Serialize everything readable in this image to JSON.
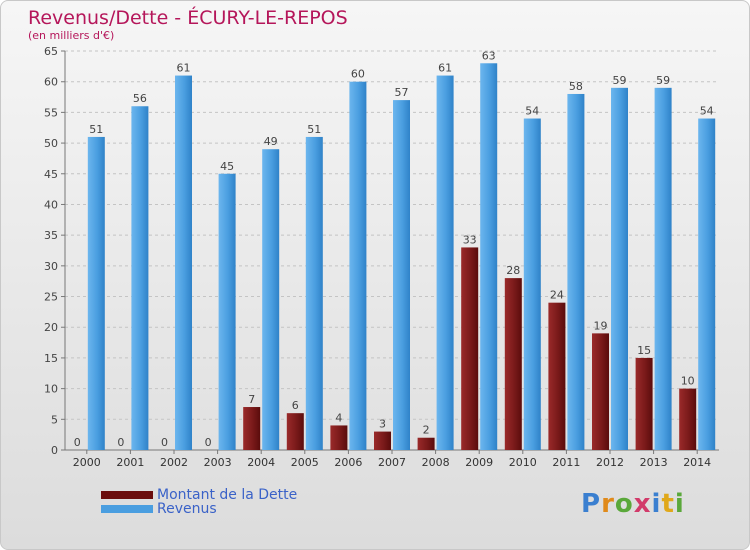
{
  "header": {
    "title": "Revenus/Dette - ÉCURY-LE-REPOS",
    "subtitle": "(en milliers d'€)"
  },
  "legend": {
    "items": [
      {
        "label": "Montant de la Dette",
        "color": "#6b0d0d"
      },
      {
        "label": "Revenus",
        "color": "#4a9ee0"
      }
    ]
  },
  "logo": {
    "text": "Proxiti"
  },
  "chart_data": {
    "type": "bar",
    "title": "Revenus/Dette - ÉCURY-LE-REPOS",
    "ylabel": "(en milliers d'€)",
    "xlabel": "",
    "categories": [
      "2000",
      "2001",
      "2002",
      "2003",
      "2004",
      "2005",
      "2006",
      "2007",
      "2008",
      "2009",
      "2010",
      "2011",
      "2012",
      "2013",
      "2014"
    ],
    "series": [
      {
        "name": "Montant de la Dette",
        "color": "#7a1a1a",
        "values": [
          0,
          0,
          0,
          0,
          7,
          6,
          4,
          3,
          2,
          33,
          28,
          24,
          19,
          15,
          10
        ]
      },
      {
        "name": "Revenus",
        "color": "#4a9ee0",
        "values": [
          51,
          56,
          61,
          45,
          49,
          51,
          60,
          57,
          61,
          63,
          54,
          58,
          59,
          59,
          54
        ]
      }
    ],
    "yticks": [
      0,
      5,
      10,
      15,
      20,
      25,
      30,
      35,
      40,
      45,
      50,
      55,
      60,
      65
    ],
    "ylim": [
      0,
      65
    ],
    "grid": true,
    "legend_position": "bottom-left"
  }
}
